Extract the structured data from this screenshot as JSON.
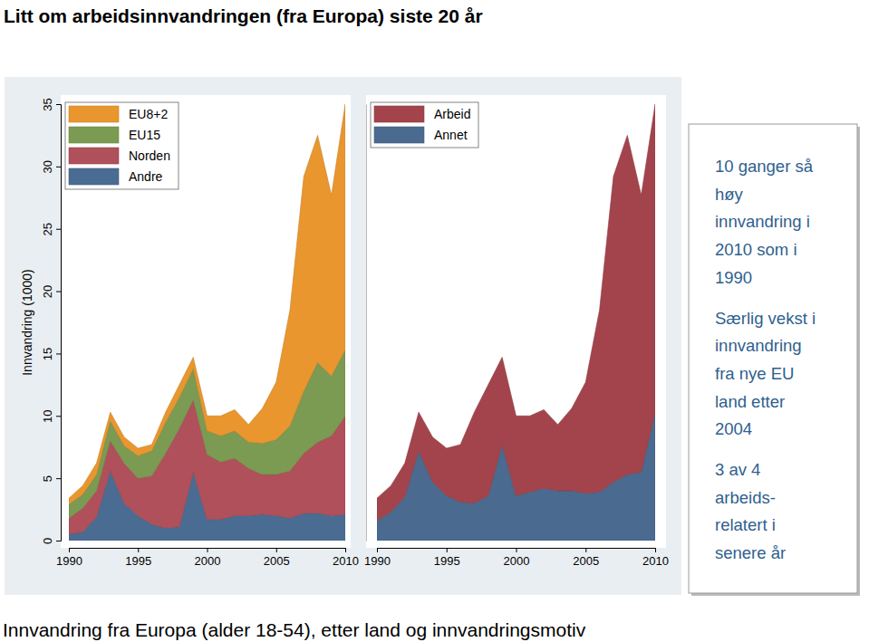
{
  "title": "Litt om arbeidsinnvandringen (fra Europa) siste 20 år",
  "caption": "Innvandring fra Europa (alder 18-54), etter land og innvandringsmotiv",
  "annotations": [
    [
      "10 ganger så",
      "høy",
      "innvandring i",
      "2010 som i",
      "1990"
    ],
    [
      "Særlig vekst i",
      "innvandring",
      "fra nye EU",
      "land etter",
      "2004"
    ],
    [
      "3 av 4",
      "arbeids-",
      "relatert i",
      "senere år"
    ]
  ],
  "chart_data": [
    {
      "type": "area",
      "stacked": true,
      "ylabel": "Innvandring (1000)",
      "legend": "top-left",
      "x": [
        1990,
        1991,
        1992,
        1993,
        1994,
        1995,
        1996,
        1997,
        1998,
        1999,
        2000,
        2001,
        2002,
        2003,
        2004,
        2005,
        2006,
        2007,
        2008,
        2009,
        2010
      ],
      "xlim": [
        1990,
        2010
      ],
      "xticks": [
        1990,
        1995,
        2000,
        2005,
        2010
      ],
      "ylim": [
        0,
        35
      ],
      "yticks": [
        0,
        5,
        10,
        15,
        20,
        25,
        30,
        35
      ],
      "series": [
        {
          "name": "Andre",
          "color": "#4a6c92",
          "values": [
            0.5,
            0.7,
            1.9,
            5.6,
            3.0,
            2.0,
            1.3,
            1.0,
            1.1,
            5.5,
            1.7,
            1.7,
            2.0,
            2.0,
            2.1,
            2.0,
            1.8,
            2.2,
            2.2,
            2.0,
            2.1
          ]
        },
        {
          "name": "Norden",
          "color": "#b0505a",
          "values": [
            1.3,
            1.9,
            2.1,
            2.4,
            3.2,
            3.0,
            3.9,
            6.0,
            7.9,
            5.8,
            5.2,
            4.6,
            4.6,
            3.8,
            3.2,
            3.3,
            3.8,
            4.8,
            5.7,
            6.4,
            7.9
          ]
        },
        {
          "name": "EU15",
          "color": "#7b9a52",
          "values": [
            1.1,
            1.1,
            1.3,
            1.6,
            1.4,
            1.8,
            2.0,
            2.5,
            2.5,
            2.5,
            1.9,
            2.1,
            2.2,
            2.1,
            2.5,
            2.8,
            3.6,
            5.0,
            6.4,
            4.8,
            5.3
          ]
        },
        {
          "name": "EU8+2",
          "color": "#e9962f",
          "values": [
            0.5,
            0.7,
            0.9,
            0.7,
            0.7,
            0.6,
            0.5,
            0.8,
            1.0,
            0.9,
            1.2,
            1.6,
            1.7,
            1.4,
            2.8,
            4.6,
            9.3,
            17.2,
            18.2,
            14.5,
            19.7
          ]
        }
      ]
    },
    {
      "type": "area",
      "stacked": true,
      "legend": "top-left",
      "tick_labels": "x",
      "x": [
        1990,
        1991,
        1992,
        1993,
        1994,
        1995,
        1996,
        1997,
        1998,
        1999,
        2000,
        2001,
        2002,
        2003,
        2004,
        2005,
        2006,
        2007,
        2008,
        2009,
        2010
      ],
      "xlim": [
        1990,
        2010
      ],
      "xticks": [
        1990,
        1995,
        2000,
        2005,
        2010
      ],
      "ylim": [
        0,
        35
      ],
      "series": [
        {
          "name": "Annet",
          "color": "#4a6a90",
          "values": [
            1.6,
            2.3,
            3.5,
            7.2,
            4.7,
            3.6,
            3.1,
            3.0,
            3.6,
            7.7,
            3.6,
            3.9,
            4.2,
            4.0,
            4.0,
            3.8,
            3.9,
            4.7,
            5.3,
            5.5,
            10.3
          ]
        },
        {
          "name": "Arbeid",
          "color": "#a3444c",
          "values": [
            1.8,
            2.1,
            2.7,
            3.1,
            3.6,
            3.8,
            4.6,
            7.3,
            8.9,
            7.0,
            6.4,
            6.1,
            6.3,
            5.3,
            6.6,
            8.9,
            14.6,
            24.5,
            27.2,
            22.2,
            24.7
          ]
        }
      ]
    }
  ]
}
